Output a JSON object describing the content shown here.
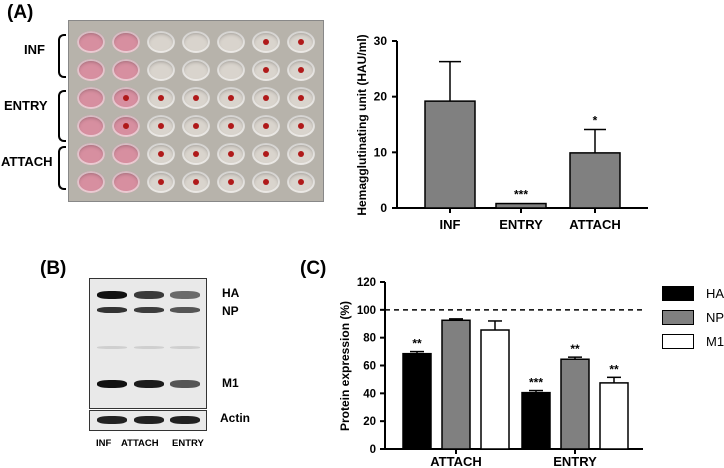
{
  "panels": {
    "a": "(A)",
    "b": "(B)",
    "c": "(C)"
  },
  "plate": {
    "row_labels": [
      "INF",
      "ENTRY",
      "ATTACH"
    ],
    "rows": [
      [
        0,
        0,
        0,
        0,
        0,
        1,
        1
      ],
      [
        0,
        0,
        0,
        0,
        0,
        1,
        1
      ],
      [
        0,
        1,
        1,
        1,
        1,
        1,
        1
      ],
      [
        0,
        1,
        1,
        1,
        1,
        1,
        1
      ],
      [
        0,
        0,
        1,
        1,
        1,
        1,
        1
      ],
      [
        0,
        0,
        1,
        1,
        1,
        1,
        1
      ]
    ],
    "colors": {
      "pink": "#d78fa0",
      "clear": "#d9d4cd"
    }
  },
  "blot": {
    "band_labels": [
      "HA",
      "NP",
      "M1",
      "Actin"
    ],
    "lane_labels": [
      "INF",
      "ATTACH",
      "ENTRY"
    ]
  },
  "chart_data": [
    {
      "type": "bar",
      "categories": [
        "INF",
        "ENTRY",
        "ATTACH"
      ],
      "values": [
        19.2,
        0.8,
        9.9
      ],
      "errors": [
        7.1,
        0,
        4.2
      ],
      "significance": [
        "",
        "***",
        "*"
      ],
      "ylabel": "Hemagglutinating unit (HAU/ml)",
      "ylim": [
        0,
        30
      ],
      "yticks": [
        0,
        10,
        20,
        30
      ],
      "color": "#808080"
    },
    {
      "type": "bar",
      "categories": [
        "ATTACH",
        "ENTRY"
      ],
      "series": [
        {
          "name": "HA",
          "values": [
            68.5,
            40.5
          ],
          "errors": [
            1.5,
            1.5
          ],
          "significance": [
            "**",
            "***"
          ],
          "color": "#000000"
        },
        {
          "name": "NP",
          "values": [
            92.5,
            64.5
          ],
          "errors": [
            1.0,
            1.5
          ],
          "significance": [
            "",
            "**"
          ],
          "color": "#808080"
        },
        {
          "name": "M1",
          "values": [
            85.5,
            47.5
          ],
          "errors": [
            6.5,
            4.0
          ],
          "significance": [
            "",
            "**"
          ],
          "color": "#ffffff"
        }
      ],
      "ylabel": "Protein expression (%)",
      "ylim": [
        0,
        120
      ],
      "yticks": [
        0,
        20,
        40,
        60,
        80,
        100,
        120
      ],
      "reference_line": 100,
      "legend": "right"
    }
  ]
}
